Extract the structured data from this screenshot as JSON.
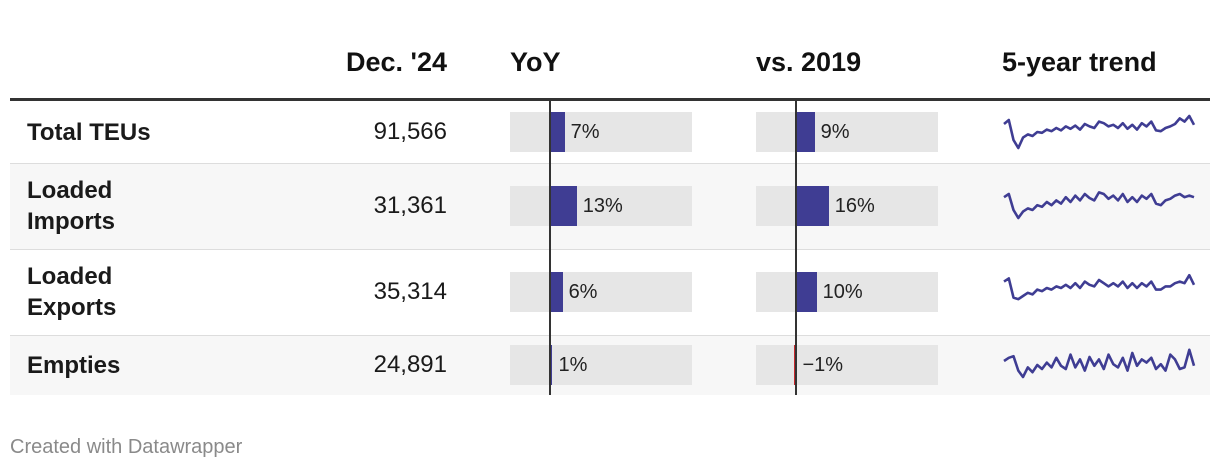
{
  "header": {
    "col_dec": "Dec. '24",
    "col_yoy": "YoY",
    "col_vs2019": "vs. 2019",
    "col_trend": "5-year trend"
  },
  "colors": {
    "positive_bar": "#3f3d93",
    "negative_bar": "#c8282d",
    "bar_track": "#e6e6e6",
    "sparkline": "#3f3d93"
  },
  "rows": [
    {
      "label": "Total TEUs",
      "value": "91,566",
      "yoy": 7,
      "yoy_label": "7%",
      "vs2019": 9,
      "vs2019_label": "9%"
    },
    {
      "label": "Loaded Imports",
      "value": "31,361",
      "yoy": 13,
      "yoy_label": "13%",
      "vs2019": 16,
      "vs2019_label": "16%"
    },
    {
      "label": "Loaded Exports",
      "value": "35,314",
      "yoy": 6,
      "yoy_label": "6%",
      "vs2019": 10,
      "vs2019_label": "10%"
    },
    {
      "label": "Empties",
      "value": "24,891",
      "yoy": 1,
      "yoy_label": "1%",
      "vs2019": -1,
      "vs2019_label": "−1%"
    }
  ],
  "chart_data": {
    "type": "table",
    "columns": [
      "Dec. '24",
      "YoY",
      "vs. 2019",
      "5-year trend"
    ],
    "bar_domain": [
      -20,
      70
    ],
    "series": [
      {
        "name": "Total TEUs",
        "trend": [
          55,
          60,
          35,
          25,
          38,
          42,
          40,
          45,
          44,
          48,
          46,
          50,
          47,
          52,
          49,
          53,
          48,
          55,
          52,
          50,
          58,
          56,
          52,
          54,
          50,
          56,
          49,
          54,
          48,
          56,
          52,
          58,
          47,
          46,
          50,
          52,
          55,
          62,
          58,
          65,
          54
        ]
      },
      {
        "name": "Loaded Imports",
        "trend": [
          56,
          60,
          40,
          30,
          38,
          42,
          40,
          46,
          44,
          50,
          46,
          52,
          48,
          56,
          50,
          58,
          52,
          60,
          55,
          52,
          62,
          60,
          54,
          58,
          52,
          60,
          50,
          56,
          50,
          58,
          54,
          60,
          48,
          46,
          52,
          54,
          58,
          60,
          56,
          58,
          56
        ]
      },
      {
        "name": "Loaded Exports",
        "trend": [
          58,
          62,
          38,
          36,
          40,
          44,
          42,
          48,
          46,
          50,
          48,
          52,
          50,
          54,
          50,
          56,
          50,
          58,
          54,
          52,
          60,
          56,
          52,
          56,
          52,
          58,
          50,
          56,
          50,
          56,
          52,
          58,
          48,
          48,
          52,
          52,
          56,
          58,
          56,
          66,
          54
        ]
      },
      {
        "name": "Empties",
        "trend": [
          50,
          54,
          56,
          38,
          30,
          42,
          36,
          45,
          40,
          48,
          42,
          54,
          44,
          40,
          58,
          42,
          52,
          38,
          55,
          44,
          52,
          40,
          58,
          46,
          42,
          54,
          38,
          60,
          44,
          52,
          48,
          54,
          40,
          46,
          38,
          58,
          52,
          40,
          42,
          64,
          44
        ]
      }
    ]
  },
  "footer": "Created with Datawrapper"
}
